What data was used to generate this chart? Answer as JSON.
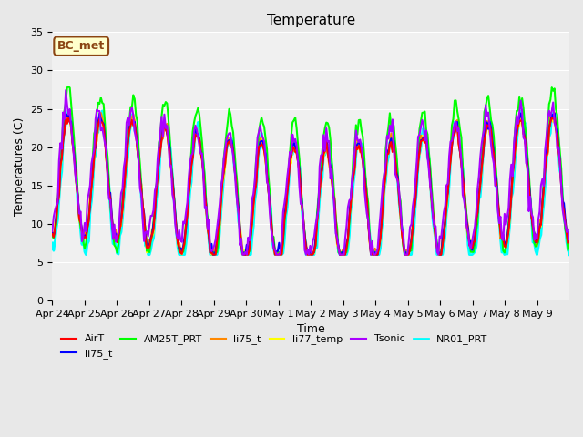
{
  "title": "Temperature",
  "xlabel": "Time",
  "ylabel": "Temperatures (C)",
  "ylim": [
    0,
    35
  ],
  "yticks": [
    0,
    5,
    10,
    15,
    20,
    25,
    30,
    35
  ],
  "x_labels": [
    "Apr 24",
    "Apr 25",
    "Apr 26",
    "Apr 27",
    "Apr 28",
    "Apr 29",
    "Apr 30",
    "May 1",
    "May 2",
    "May 3",
    "May 4",
    "May 5",
    "May 6",
    "May 7",
    "May 8",
    "May 9"
  ],
  "bg_color": "#e8e8e8",
  "plot_bg_color": "#f0f0f0",
  "annotation_text": "BC_met",
  "annotation_bg": "#ffffcc",
  "annotation_border": "#8b4513",
  "series": {
    "AirT": {
      "color": "#ff0000",
      "lw": 1.5
    },
    "li75_t_b": {
      "color": "#0000ff",
      "lw": 1.5
    },
    "AM25T_PRT": {
      "color": "#00ff00",
      "lw": 1.5
    },
    "li75_t": {
      "color": "#ff8800",
      "lw": 1.5
    },
    "li77_temp": {
      "color": "#ffff00",
      "lw": 1.5
    },
    "Tsonic": {
      "color": "#aa00ff",
      "lw": 1.5
    },
    "NR01_PRT": {
      "color": "#00ffff",
      "lw": 2.0
    }
  }
}
